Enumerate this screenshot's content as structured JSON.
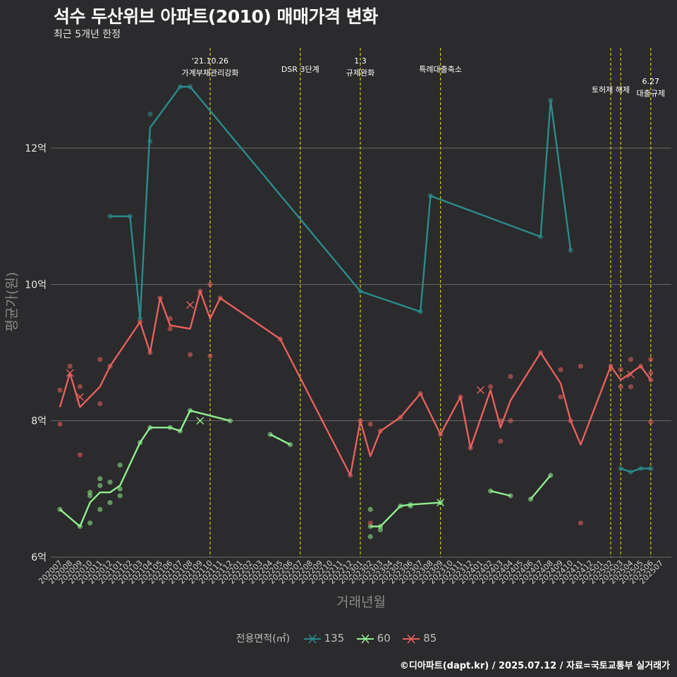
{
  "title": "석수 두산위브 아파트(2010) 매매가격 변화",
  "subtitle": "최근 5개년 한정",
  "caption": "©디아파트(dapt.kr) / 2025.07.12 / 자료=국토교통부 실거래가",
  "chart_data": {
    "type": "line",
    "xlabel": "거래년월",
    "ylabel": "평균가(원)",
    "ylim": [
      6,
      12.0
    ],
    "y_ticks": [
      6,
      8,
      10,
      12
    ],
    "y_tick_labels": [
      "6억",
      "8억",
      "10억",
      "12억"
    ],
    "grid": true,
    "legend_position": "bottom",
    "legend_title": "전용면적(㎡)",
    "categories": [
      "202007",
      "202008",
      "202009",
      "202010",
      "202011",
      "202012",
      "202101",
      "202102",
      "202103",
      "202104",
      "202105",
      "202106",
      "202107",
      "202108",
      "202109",
      "202110",
      "202111",
      "202112",
      "202201",
      "202202",
      "202203",
      "202204",
      "202205",
      "202206",
      "202207",
      "202208",
      "202209",
      "202210",
      "202211",
      "202212",
      "202301",
      "202302",
      "202303",
      "202304",
      "202305",
      "202306",
      "202307",
      "202308",
      "202309",
      "202310",
      "202311",
      "202312",
      "202401",
      "202402",
      "202403",
      "202404",
      "202405",
      "202406",
      "202407",
      "202408",
      "202409",
      "202410",
      "202411",
      "202412",
      "202501",
      "202502",
      "202503",
      "202504",
      "202505",
      "202506",
      "202507"
    ],
    "series": [
      {
        "name": "135",
        "color": "#2a8c8c",
        "points": [
          [
            "202012",
            11.0
          ],
          [
            "202102",
            11.0
          ],
          [
            "202103",
            9.5
          ],
          [
            "202104",
            12.3
          ],
          [
            "202107",
            12.9
          ],
          [
            "202108",
            12.9
          ],
          [
            "202301",
            9.9
          ],
          [
            "202307",
            9.6
          ],
          [
            "202308",
            11.3
          ],
          [
            "202407",
            10.7
          ],
          [
            "202408",
            12.7
          ],
          [
            "202410",
            10.5
          ],
          [
            "202503",
            7.3
          ],
          [
            "202504",
            7.25
          ],
          [
            "202505",
            7.3
          ],
          [
            "202506",
            7.3
          ]
        ],
        "segments": [
          [
            0,
            11
          ],
          [
            12,
            15
          ]
        ],
        "scatter": [
          [
            "202012",
            11.0
          ],
          [
            "202102",
            11.0
          ],
          [
            "202103",
            9.5
          ],
          [
            "202104",
            12.1
          ],
          [
            "202104",
            12.5
          ],
          [
            "202107",
            12.9
          ],
          [
            "202108",
            12.9
          ],
          [
            "202301",
            9.9
          ],
          [
            "202307",
            9.6
          ],
          [
            "202308",
            11.3
          ],
          [
            "202407",
            10.7
          ],
          [
            "202408",
            12.7
          ],
          [
            "202410",
            10.5
          ],
          [
            "202503",
            7.3
          ],
          [
            "202504",
            7.25
          ],
          [
            "202505",
            7.3
          ],
          [
            "202506",
            7.3
          ]
        ],
        "crosses": []
      },
      {
        "name": "60",
        "color": "#90ee90",
        "points": [
          [
            "202007",
            6.7
          ],
          [
            "202009",
            6.45
          ],
          [
            "202010",
            6.8
          ],
          [
            "202011",
            6.95
          ],
          [
            "202012",
            6.95
          ],
          [
            "202101",
            7.05
          ],
          [
            "202103",
            7.68
          ],
          [
            "202104",
            7.9
          ],
          [
            "202106",
            7.9
          ],
          [
            "202107",
            7.85
          ],
          [
            "202108",
            8.15
          ],
          [
            "202112",
            8.0
          ],
          [
            "202204",
            7.8
          ],
          [
            "202206",
            7.65
          ],
          [
            "202302",
            6.45
          ],
          [
            "202303",
            6.45
          ],
          [
            "202305",
            6.75
          ],
          [
            "202306",
            6.77
          ],
          [
            "202309",
            6.8
          ],
          [
            "202402",
            6.97
          ],
          [
            "202404",
            6.9
          ],
          [
            "202406",
            6.85
          ],
          [
            "202408",
            7.2
          ]
        ],
        "segments": [
          [
            0,
            11
          ],
          [
            12,
            13
          ],
          [
            14,
            18
          ],
          [
            19,
            20
          ],
          [
            21,
            22
          ]
        ],
        "scatter": [
          [
            "202007",
            6.7
          ],
          [
            "202009",
            6.45
          ],
          [
            "202010",
            6.9
          ],
          [
            "202010",
            6.95
          ],
          [
            "202010",
            6.5
          ],
          [
            "202011",
            7.15
          ],
          [
            "202011",
            7.05
          ],
          [
            "202011",
            6.7
          ],
          [
            "202012",
            7.1
          ],
          [
            "202012",
            6.8
          ],
          [
            "202101",
            7.35
          ],
          [
            "202101",
            7.0
          ],
          [
            "202101",
            6.9
          ],
          [
            "202103",
            7.68
          ],
          [
            "202104",
            7.9
          ],
          [
            "202106",
            7.9
          ],
          [
            "202107",
            7.85
          ],
          [
            "202108",
            8.15
          ],
          [
            "202112",
            8.0
          ],
          [
            "202204",
            7.8
          ],
          [
            "202206",
            7.65
          ],
          [
            "202302",
            6.7
          ],
          [
            "202302",
            6.45
          ],
          [
            "202302",
            6.3
          ],
          [
            "202303",
            6.45
          ],
          [
            "202303",
            6.4
          ],
          [
            "202305",
            6.75
          ],
          [
            "202306",
            6.77
          ],
          [
            "202306",
            6.75
          ],
          [
            "202309",
            6.8
          ],
          [
            "202402",
            6.97
          ],
          [
            "202404",
            6.9
          ],
          [
            "202406",
            6.85
          ],
          [
            "202408",
            7.2
          ]
        ],
        "crosses": [
          [
            "202109",
            8.0
          ],
          [
            "202309",
            6.8
          ]
        ]
      },
      {
        "name": "85",
        "color": "#e8605e",
        "points": [
          [
            "202007",
            8.2
          ],
          [
            "202008",
            8.7
          ],
          [
            "202009",
            8.2
          ],
          [
            "202011",
            8.5
          ],
          [
            "202012",
            8.8
          ],
          [
            "202103",
            9.45
          ],
          [
            "202104",
            9.0
          ],
          [
            "202105",
            9.8
          ],
          [
            "202106",
            9.4
          ],
          [
            "202108",
            9.35
          ],
          [
            "202109",
            9.9
          ],
          [
            "202110",
            9.5
          ],
          [
            "202111",
            9.8
          ],
          [
            "202205",
            9.2
          ],
          [
            "202212",
            7.2
          ],
          [
            "202301",
            8.0
          ],
          [
            "202302",
            7.48
          ],
          [
            "202303",
            7.85
          ],
          [
            "202305",
            8.05
          ],
          [
            "202307",
            8.4
          ],
          [
            "202309",
            7.8
          ],
          [
            "202311",
            8.35
          ],
          [
            "202312",
            7.6
          ],
          [
            "202402",
            8.45
          ],
          [
            "202403",
            7.9
          ],
          [
            "202404",
            8.3
          ],
          [
            "202407",
            9.0
          ],
          [
            "202409",
            8.55
          ],
          [
            "202410",
            8.0
          ],
          [
            "202411",
            7.65
          ],
          [
            "202502",
            8.8
          ],
          [
            "202503",
            8.6
          ],
          [
            "202505",
            8.8
          ],
          [
            "202506",
            8.6
          ]
        ],
        "segments": [
          [
            0,
            33
          ]
        ],
        "scatter": [
          [
            "202007",
            8.45
          ],
          [
            "202007",
            7.95
          ],
          [
            "202008",
            8.8
          ],
          [
            "202009",
            8.5
          ],
          [
            "202009",
            7.5
          ],
          [
            "202011",
            8.9
          ],
          [
            "202011",
            8.25
          ],
          [
            "202012",
            8.8
          ],
          [
            "202103",
            9.45
          ],
          [
            "202104",
            9.0
          ],
          [
            "202105",
            9.8
          ],
          [
            "202106",
            9.5
          ],
          [
            "202106",
            9.35
          ],
          [
            "202108",
            8.97
          ],
          [
            "202109",
            9.9
          ],
          [
            "202110",
            10.0
          ],
          [
            "202110",
            8.95
          ],
          [
            "202111",
            9.8
          ],
          [
            "202205",
            9.2
          ],
          [
            "202212",
            7.2
          ],
          [
            "202301",
            8.0
          ],
          [
            "202302",
            7.95
          ],
          [
            "202302",
            6.5
          ],
          [
            "202303",
            7.85
          ],
          [
            "202305",
            8.05
          ],
          [
            "202307",
            8.4
          ],
          [
            "202309",
            7.8
          ],
          [
            "202311",
            8.35
          ],
          [
            "202312",
            7.6
          ],
          [
            "202402",
            8.5
          ],
          [
            "202403",
            8.0
          ],
          [
            "202403",
            7.7
          ],
          [
            "202404",
            8.65
          ],
          [
            "202404",
            8.0
          ],
          [
            "202407",
            9.0
          ],
          [
            "202409",
            8.75
          ],
          [
            "202409",
            8.35
          ],
          [
            "202410",
            8.0
          ],
          [
            "202411",
            8.8
          ],
          [
            "202411",
            6.5
          ],
          [
            "202502",
            8.8
          ],
          [
            "202503",
            8.75
          ],
          [
            "202503",
            8.5
          ],
          [
            "202504",
            8.9
          ],
          [
            "202504",
            8.5
          ],
          [
            "202505",
            8.8
          ],
          [
            "202506",
            8.9
          ],
          [
            "202506",
            8.7
          ],
          [
            "202506",
            8.6
          ],
          [
            "202506",
            7.98
          ]
        ],
        "crosses": [
          [
            "202008",
            8.7
          ],
          [
            "202009",
            8.35
          ],
          [
            "202108",
            9.7
          ],
          [
            "202401",
            8.45
          ],
          [
            "202504",
            8.68
          ]
        ]
      }
    ],
    "events": [
      {
        "month": "202110",
        "lines": [
          "'21.10.26",
          "가계부채관리강화"
        ],
        "level": 0
      },
      {
        "month": "202207",
        "lines": [
          "DSR 3단계"
        ],
        "level": 2
      },
      {
        "month": "202301",
        "lines": [
          "1.3",
          "규제완화"
        ],
        "level": 0
      },
      {
        "month": "202309",
        "lines": [
          "특례대출축소"
        ],
        "level": 2
      },
      {
        "month": "202502",
        "lines": [
          "토허제 해제"
        ],
        "level": 1
      },
      {
        "month": "202503",
        "lines": [],
        "level": 1
      },
      {
        "month": "202506",
        "lines": [
          "6.27",
          "대출규제"
        ],
        "level": 3
      }
    ]
  }
}
